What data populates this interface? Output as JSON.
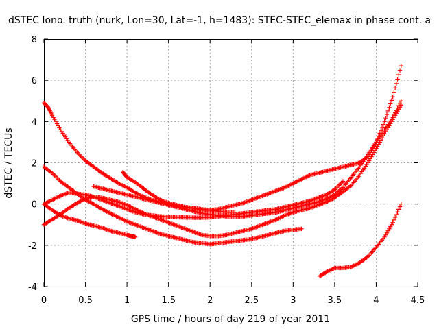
{
  "chart_data": {
    "type": "scatter",
    "title": "dSTEC Iono. truth (nurk, Lon=30, Lat=-1, h=1483): STEC-STEC_elemax in phase cont. a",
    "xlabel": "GPS time / hours of day 219 of year 2011",
    "ylabel": "dSTEC  / TECUs",
    "xlim": [
      0,
      4.5
    ],
    "ylim": [
      -4,
      8
    ],
    "xticks": [
      0,
      0.5,
      1,
      1.5,
      2,
      2.5,
      3,
      3.5,
      4,
      4.5
    ],
    "xtick_labels": [
      "0",
      "0.5",
      "1",
      "1.5",
      "2",
      "2.5",
      "3",
      "3.5",
      "4",
      "4.5"
    ],
    "yticks": [
      -4,
      -2,
      0,
      2,
      4,
      6,
      8
    ],
    "ytick_labels": [
      "-4",
      "-2",
      "0",
      "2",
      "4",
      "6",
      "8"
    ],
    "grid": true,
    "marker": "plus",
    "color": "#ff0000",
    "series": [
      {
        "x": [
          0.0,
          0.05,
          0.1,
          0.2,
          0.3,
          0.4,
          0.5,
          0.6,
          0.7,
          0.8,
          0.9,
          1.0,
          1.1,
          1.2,
          1.3,
          1.4,
          1.5,
          1.6,
          1.7,
          1.8,
          1.9,
          2.0,
          2.1,
          2.2,
          2.3
        ],
        "y": [
          4.9,
          4.7,
          4.3,
          3.6,
          3.0,
          2.5,
          2.1,
          1.8,
          1.5,
          1.25,
          1.0,
          0.8,
          0.55,
          0.35,
          0.2,
          0.1,
          0.0,
          -0.1,
          -0.15,
          -0.2,
          -0.3,
          -0.3,
          -0.35,
          -0.4,
          -0.4
        ]
      },
      {
        "x": [
          0.0,
          0.1,
          0.2,
          0.3,
          0.4,
          0.5,
          0.6,
          0.7,
          0.8,
          0.9,
          1.0,
          1.1,
          1.2,
          1.3,
          1.4,
          1.5,
          1.6,
          1.7,
          1.8,
          1.9,
          2.0,
          2.1,
          2.2,
          2.3,
          2.4,
          2.5,
          2.6,
          2.7,
          2.8,
          2.9,
          3.0,
          3.1
        ],
        "y": [
          1.8,
          1.5,
          1.1,
          0.8,
          0.5,
          0.2,
          0.0,
          -0.25,
          -0.45,
          -0.65,
          -0.85,
          -1.0,
          -1.15,
          -1.3,
          -1.45,
          -1.55,
          -1.65,
          -1.75,
          -1.85,
          -1.9,
          -1.95,
          -1.9,
          -1.85,
          -1.8,
          -1.75,
          -1.7,
          -1.6,
          -1.5,
          -1.4,
          -1.3,
          -1.25,
          -1.2
        ]
      },
      {
        "x": [
          0.0,
          0.1,
          0.2,
          0.3,
          0.4,
          0.5,
          0.6,
          0.7,
          0.8,
          0.9,
          1.0,
          1.05,
          1.1
        ],
        "y": [
          0.0,
          -0.3,
          -0.55,
          -0.7,
          -0.8,
          -0.95,
          -1.05,
          -1.15,
          -1.3,
          -1.4,
          -1.5,
          -1.55,
          -1.6
        ]
      },
      {
        "x": [
          0.0,
          0.1,
          0.2,
          0.3,
          0.4,
          0.5,
          0.6,
          0.7,
          0.8,
          0.9,
          1.0,
          1.1,
          1.2,
          1.3,
          1.4,
          1.5,
          1.6,
          1.7,
          1.8,
          1.9,
          2.0,
          2.1,
          2.2,
          2.3,
          2.4,
          2.5,
          2.6,
          2.7,
          2.8,
          2.9,
          3.0,
          3.1,
          3.2,
          3.3,
          3.4,
          3.5,
          3.6,
          3.7,
          3.8,
          3.9,
          4.0,
          4.1,
          4.2,
          4.3
        ],
        "y": [
          -1.0,
          -0.75,
          -0.5,
          -0.2,
          0.05,
          0.25,
          0.35,
          0.3,
          0.2,
          0.1,
          -0.05,
          -0.25,
          -0.45,
          -0.6,
          -0.75,
          -0.9,
          -1.05,
          -1.2,
          -1.35,
          -1.5,
          -1.55,
          -1.55,
          -1.5,
          -1.4,
          -1.3,
          -1.2,
          -1.05,
          -0.9,
          -0.75,
          -0.55,
          -0.4,
          -0.3,
          -0.2,
          -0.05,
          0.1,
          0.3,
          0.6,
          0.9,
          1.4,
          2.0,
          2.7,
          3.4,
          4.1,
          4.8
        ]
      },
      {
        "x": [
          0.0,
          0.1,
          0.2,
          0.3,
          0.4,
          0.5,
          0.6,
          0.7,
          0.8,
          0.9,
          1.0,
          1.1,
          1.2,
          1.3,
          1.4,
          1.5,
          1.6,
          1.7,
          1.8,
          1.9,
          2.0,
          2.1,
          2.2,
          2.3,
          2.4,
          2.5,
          2.6,
          2.7,
          2.8,
          2.9,
          3.0,
          3.1,
          3.2,
          3.3,
          3.4,
          3.5,
          3.6
        ],
        "y": [
          0.0,
          0.2,
          0.4,
          0.55,
          0.5,
          0.45,
          0.35,
          0.2,
          0.05,
          -0.1,
          -0.25,
          -0.4,
          -0.5,
          -0.55,
          -0.6,
          -0.62,
          -0.64,
          -0.65,
          -0.66,
          -0.66,
          -0.65,
          -0.6,
          -0.55,
          -0.5,
          -0.45,
          -0.4,
          -0.35,
          -0.3,
          -0.25,
          -0.15,
          -0.05,
          0.05,
          0.15,
          0.3,
          0.45,
          0.7,
          1.1
        ]
      },
      {
        "x": [
          0.6,
          0.7,
          0.8,
          0.9,
          1.0,
          1.1,
          1.2,
          1.3,
          1.4,
          1.5,
          1.6,
          1.7,
          1.8,
          1.9,
          2.0,
          2.1,
          2.2,
          2.3,
          2.4,
          2.5,
          2.6,
          2.7,
          2.8,
          2.9,
          3.0,
          3.1,
          3.2,
          3.3,
          3.4,
          3.5,
          3.6,
          3.7,
          3.8,
          3.9,
          4.0,
          4.1,
          4.2,
          4.3
        ],
        "y": [
          0.85,
          0.75,
          0.65,
          0.55,
          0.45,
          0.35,
          0.25,
          0.15,
          0.05,
          -0.05,
          -0.15,
          -0.25,
          -0.35,
          -0.45,
          -0.5,
          -0.55,
          -0.6,
          -0.6,
          -0.6,
          -0.55,
          -0.5,
          -0.45,
          -0.4,
          -0.3,
          -0.2,
          -0.1,
          0.0,
          0.1,
          0.25,
          0.45,
          0.8,
          1.3,
          1.8,
          2.4,
          3.0,
          3.6,
          4.2,
          5.0
        ]
      },
      {
        "x": [
          0.95,
          1.0,
          1.1,
          1.2,
          1.3,
          1.4,
          1.5,
          1.6,
          1.7,
          1.8,
          1.9,
          2.0,
          2.1,
          2.2,
          2.3,
          2.4,
          2.5,
          2.6,
          2.7,
          2.8,
          2.9,
          3.0,
          3.1,
          3.2,
          3.3,
          3.4,
          3.5,
          3.6,
          3.7,
          3.8,
          3.9,
          4.0,
          4.1,
          4.2,
          4.3
        ],
        "y": [
          1.55,
          1.3,
          1.05,
          0.75,
          0.45,
          0.2,
          0.05,
          -0.05,
          -0.15,
          -0.2,
          -0.25,
          -0.3,
          -0.25,
          -0.15,
          -0.05,
          0.05,
          0.2,
          0.35,
          0.5,
          0.65,
          0.8,
          1.0,
          1.2,
          1.4,
          1.5,
          1.6,
          1.7,
          1.8,
          1.9,
          2.0,
          2.3,
          3.0,
          4.0,
          5.2,
          6.7
        ]
      },
      {
        "x": [
          3.32,
          3.4,
          3.5,
          3.6,
          3.7,
          3.8,
          3.9,
          4.0,
          4.1,
          4.2,
          4.3
        ],
        "y": [
          -3.5,
          -3.3,
          -3.1,
          -3.1,
          -3.05,
          -2.85,
          -2.55,
          -2.1,
          -1.6,
          -0.9,
          0.0
        ]
      }
    ]
  }
}
